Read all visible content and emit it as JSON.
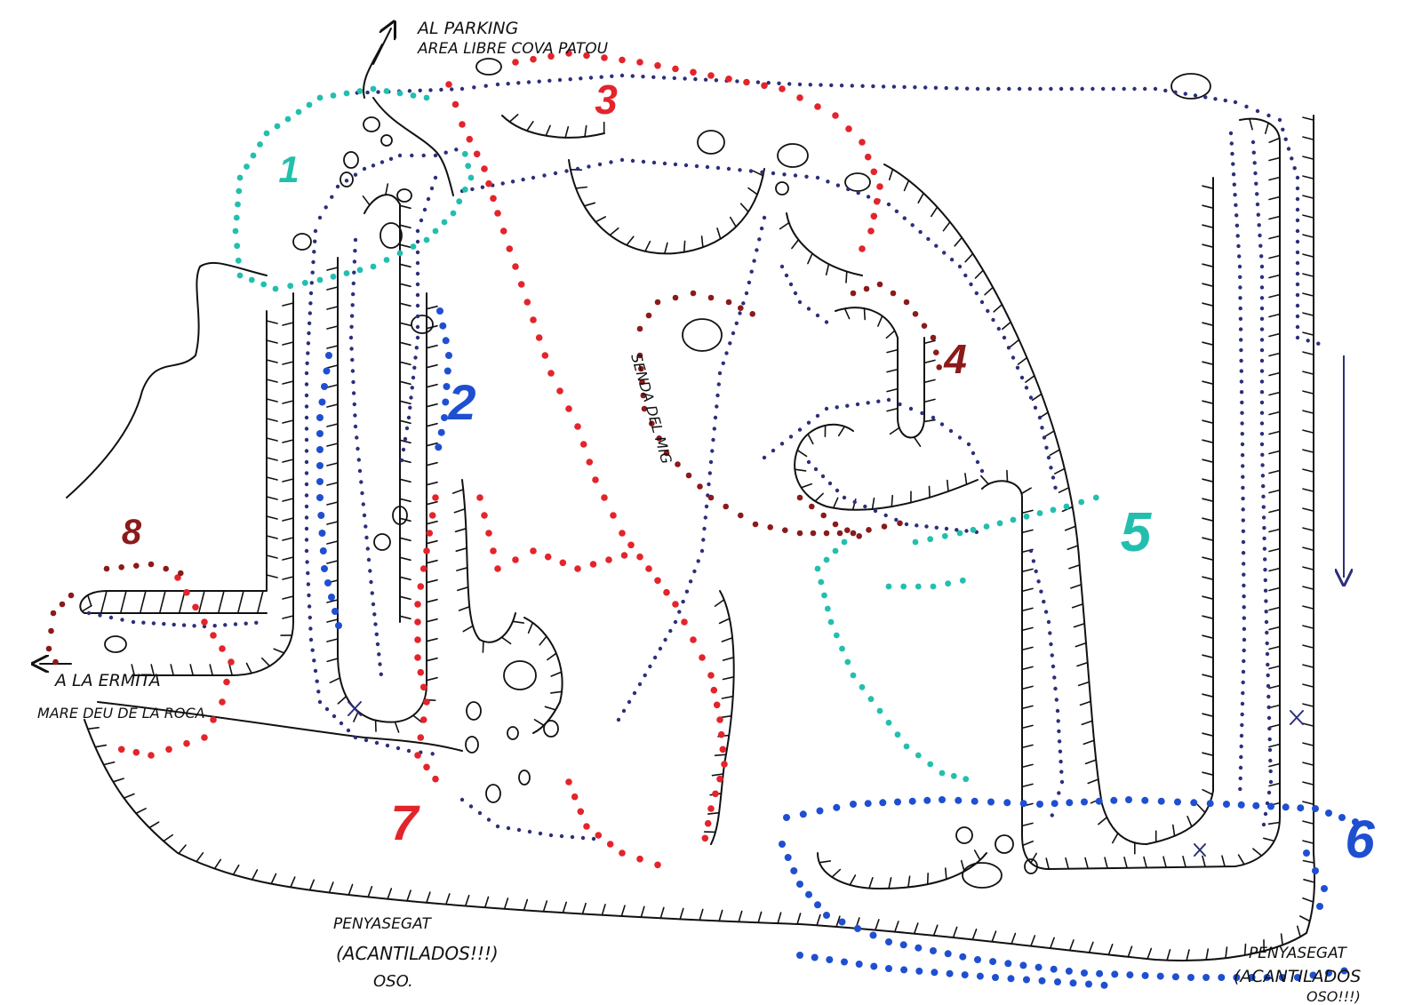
{
  "map": {
    "labels": {
      "parking_line1": "AL PARKING",
      "parking_line2": "AREA LIBRE COVA PATOU",
      "ermita_line1": "A LA ERMITA",
      "ermita_line2": "MARE DEU DE LA ROCA",
      "senda": "SENDA DEL MIG",
      "cliff_left_line1": "PENYASEGAT",
      "cliff_left_line2": "(ACANTILADOS!!!)",
      "cliff_left_line3": "OSO.",
      "cliff_right_line1": "PENYASEGAT",
      "cliff_right_line2": "(ACANTILADOS",
      "cliff_right_line3": "OSO!!!)"
    },
    "sectors": [
      {
        "id": "1",
        "color": "#22bfae"
      },
      {
        "id": "2",
        "color": "#1f4fd1"
      },
      {
        "id": "3",
        "color": "#e3242b"
      },
      {
        "id": "4",
        "color": "#8b1a1a"
      },
      {
        "id": "5",
        "color": "#22bfae"
      },
      {
        "id": "6",
        "color": "#1f4fd1"
      },
      {
        "id": "7",
        "color": "#e3242b"
      },
      {
        "id": "8",
        "color": "#8b1a1a"
      }
    ],
    "colors": {
      "ink": "#111111",
      "trail_navy": "#2b2f7a",
      "teal": "#22bfae",
      "blue": "#1f4fd1",
      "red": "#e3242b",
      "maroon": "#8b1a1a"
    }
  }
}
